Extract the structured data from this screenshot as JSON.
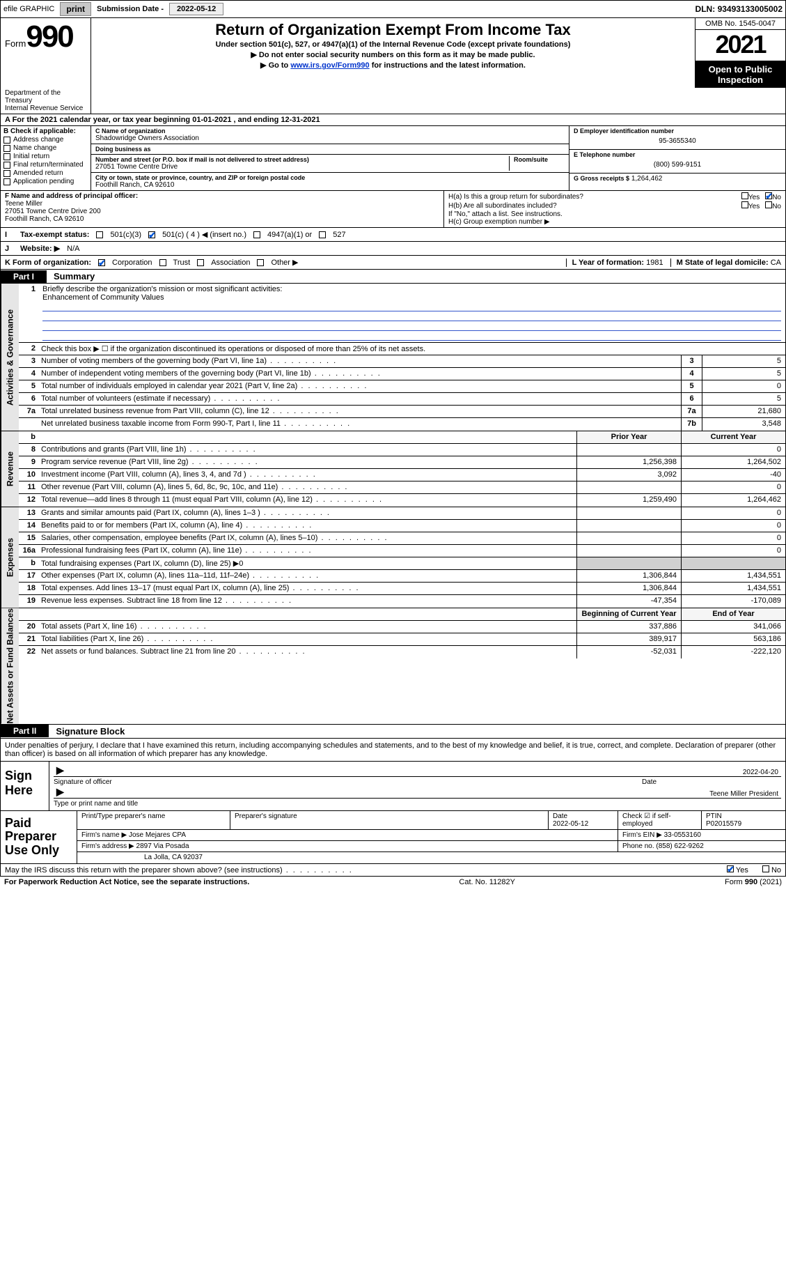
{
  "colors": {
    "link": "#0033cc",
    "check": "#0056d6",
    "rule": "#3355cc",
    "shade": "#d0d0d0",
    "vtab_bg": "#e6e6e6"
  },
  "topbar": {
    "efile_label": "efile GRAPHIC",
    "print_btn": "print",
    "subdate_label": "Submission Date -",
    "subdate_val": "2022-05-12",
    "dln_label": "DLN:",
    "dln_val": "93493133005002"
  },
  "header": {
    "form_word": "Form",
    "form_num": "990",
    "dept": "Department of the Treasury",
    "irs": "Internal Revenue Service",
    "title": "Return of Organization Exempt From Income Tax",
    "subtitle": "Under section 501(c), 527, or 4947(a)(1) of the Internal Revenue Code (except private foundations)",
    "line1": "▶ Do not enter social security numbers on this form as it may be made public.",
    "line2_pre": "▶ Go to ",
    "line2_link": "www.irs.gov/Form990",
    "line2_post": " for instructions and the latest information.",
    "omb": "OMB No. 1545-0047",
    "year": "2021",
    "open": "Open to Public Inspection"
  },
  "line_a": {
    "prefix": "A For the 2021 calendar year, or tax year beginning ",
    "begin": "01-01-2021",
    "mid": " , and ending ",
    "end": "12-31-2021"
  },
  "section_b": {
    "title": "B Check if applicable:",
    "opts": [
      "Address change",
      "Name change",
      "Initial return",
      "Final return/terminated",
      "Amended return",
      "Application pending"
    ]
  },
  "section_c": {
    "name_lbl": "C Name of organization",
    "name": "Shadowridge Owners Association",
    "dba_lbl": "Doing business as",
    "dba": "",
    "street_lbl": "Number and street (or P.O. box if mail is not delivered to street address)",
    "room_lbl": "Room/suite",
    "street": "27051 Towne Centre Drive",
    "city_lbl": "City or town, state or province, country, and ZIP or foreign postal code",
    "city": "Foothill Ranch, CA  92610"
  },
  "section_d": {
    "ein_lbl": "D Employer identification number",
    "ein": "95-3655340",
    "phone_lbl": "E Telephone number",
    "phone": "(800) 599-9151",
    "gross_lbl": "G Gross receipts $",
    "gross": "1,264,462"
  },
  "section_f": {
    "lbl": "F Name and address of principal officer:",
    "name": "Teene Miller",
    "addr1": "27051 Towne Centre Drive 200",
    "addr2": "Foothill Ranch, CA  92610"
  },
  "section_h": {
    "ha": "H(a) Is this a group return for subordinates?",
    "ha_yes": "Yes",
    "ha_no": "No",
    "ha_ans": "No",
    "hb": "H(b) Are all subordinates included?",
    "hb_yes": "Yes",
    "hb_no": "No",
    "hb_note": "If \"No,\" attach a list. See instructions.",
    "hc": "H(c) Group exemption number ▶"
  },
  "line_i": {
    "lbl": "Tax-exempt status:",
    "o1": "501(c)(3)",
    "o2": "501(c) ( 4 ) ◀ (insert no.)",
    "o3": "4947(a)(1) or",
    "o4": "527",
    "checked": "o2"
  },
  "line_j": {
    "lbl": "Website: ▶",
    "val": "N/A"
  },
  "line_k": {
    "lbl": "K Form of organization:",
    "opts": [
      "Corporation",
      "Trust",
      "Association",
      "Other ▶"
    ],
    "checked": "Corporation"
  },
  "line_l": {
    "lbl": "L Year of formation:",
    "val": "1981"
  },
  "line_m": {
    "lbl": "M State of legal domicile:",
    "val": "CA"
  },
  "part1": {
    "tab": "Part I",
    "title": "Summary"
  },
  "summary": {
    "groups": [
      {
        "label": "Activities & Governance",
        "rows": [
          {
            "n": "1",
            "text": "Briefly describe the organization's mission or most significant activities:",
            "extra": "Enhancement of Community Values",
            "type": "mission"
          },
          {
            "n": "2",
            "text": "Check this box ▶ ☐ if the organization discontinued its operations or disposed of more than 25% of its net assets.",
            "type": "plain"
          },
          {
            "n": "3",
            "text": "Number of voting members of the governing body (Part VI, line 1a)",
            "box": "3",
            "val": "5"
          },
          {
            "n": "4",
            "text": "Number of independent voting members of the governing body (Part VI, line 1b)",
            "box": "4",
            "val": "5"
          },
          {
            "n": "5",
            "text": "Total number of individuals employed in calendar year 2021 (Part V, line 2a)",
            "box": "5",
            "val": "0"
          },
          {
            "n": "6",
            "text": "Total number of volunteers (estimate if necessary)",
            "box": "6",
            "val": "5"
          },
          {
            "n": "7a",
            "text": "Total unrelated business revenue from Part VIII, column (C), line 12",
            "box": "7a",
            "val": "21,680"
          },
          {
            "n": "",
            "text": "Net unrelated business taxable income from Form 990-T, Part I, line 11",
            "box": "7b",
            "val": "3,548"
          }
        ]
      },
      {
        "label": "Revenue",
        "header": {
          "b": "b",
          "prior": "Prior Year",
          "current": "Current Year"
        },
        "rows": [
          {
            "n": "8",
            "text": "Contributions and grants (Part VIII, line 1h)",
            "prior": "",
            "current": "0"
          },
          {
            "n": "9",
            "text": "Program service revenue (Part VIII, line 2g)",
            "prior": "1,256,398",
            "current": "1,264,502"
          },
          {
            "n": "10",
            "text": "Investment income (Part VIII, column (A), lines 3, 4, and 7d )",
            "prior": "3,092",
            "current": "-40"
          },
          {
            "n": "11",
            "text": "Other revenue (Part VIII, column (A), lines 5, 6d, 8c, 9c, 10c, and 11e)",
            "prior": "",
            "current": "0"
          },
          {
            "n": "12",
            "text": "Total revenue—add lines 8 through 11 (must equal Part VIII, column (A), line 12)",
            "prior": "1,259,490",
            "current": "1,264,462"
          }
        ]
      },
      {
        "label": "Expenses",
        "rows": [
          {
            "n": "13",
            "text": "Grants and similar amounts paid (Part IX, column (A), lines 1–3 )",
            "prior": "",
            "current": "0"
          },
          {
            "n": "14",
            "text": "Benefits paid to or for members (Part IX, column (A), line 4)",
            "prior": "",
            "current": "0"
          },
          {
            "n": "15",
            "text": "Salaries, other compensation, employee benefits (Part IX, column (A), lines 5–10)",
            "prior": "",
            "current": "0"
          },
          {
            "n": "16a",
            "text": "Professional fundraising fees (Part IX, column (A), line 11e)",
            "prior": "",
            "current": "0"
          },
          {
            "n": "b",
            "text": "Total fundraising expenses (Part IX, column (D), line 25) ▶0",
            "type": "noboxes"
          },
          {
            "n": "17",
            "text": "Other expenses (Part IX, column (A), lines 11a–11d, 11f–24e)",
            "prior": "1,306,844",
            "current": "1,434,551"
          },
          {
            "n": "18",
            "text": "Total expenses. Add lines 13–17 (must equal Part IX, column (A), line 25)",
            "prior": "1,306,844",
            "current": "1,434,551"
          },
          {
            "n": "19",
            "text": "Revenue less expenses. Subtract line 18 from line 12",
            "prior": "-47,354",
            "current": "-170,089"
          }
        ]
      },
      {
        "label": "Net Assets or Fund Balances",
        "header": {
          "prior": "Beginning of Current Year",
          "current": "End of Year"
        },
        "rows": [
          {
            "n": "20",
            "text": "Total assets (Part X, line 16)",
            "prior": "337,886",
            "current": "341,066"
          },
          {
            "n": "21",
            "text": "Total liabilities (Part X, line 26)",
            "prior": "389,917",
            "current": "563,186"
          },
          {
            "n": "22",
            "text": "Net assets or fund balances. Subtract line 21 from line 20",
            "prior": "-52,031",
            "current": "-222,120"
          }
        ]
      }
    ]
  },
  "part2": {
    "tab": "Part II",
    "title": "Signature Block"
  },
  "perjury": "Under penalties of perjury, I declare that I have examined this return, including accompanying schedules and statements, and to the best of my knowledge and belief, it is true, correct, and complete. Declaration of preparer (other than officer) is based on all information of which preparer has any knowledge.",
  "sign": {
    "left": "Sign Here",
    "sig_lbl": "Signature of officer",
    "date_lbl": "Date",
    "date": "2022-04-20",
    "name": "Teene Miller  President",
    "name_lbl": "Type or print name and title"
  },
  "paid": {
    "left": "Paid Preparer Use Only",
    "hdr": [
      "Print/Type preparer's name",
      "Preparer's signature",
      "Date",
      "",
      "PTIN"
    ],
    "row1_date": "2022-05-12",
    "row1_chk_lbl": "Check ☑ if self-employed",
    "ptin": "P02015579",
    "firm_name_lbl": "Firm's name ▶",
    "firm_name": "Jose Mejares CPA",
    "firm_ein_lbl": "Firm's EIN ▶",
    "firm_ein": "33-0553160",
    "firm_addr_lbl": "Firm's address ▶",
    "firm_addr1": "2897 Via Posada",
    "firm_addr2": "La Jolla, CA  92037",
    "firm_phone_lbl": "Phone no.",
    "firm_phone": "(858) 622-9262"
  },
  "discuss": {
    "text": "May the IRS discuss this return with the preparer shown above? (see instructions)",
    "yes": "Yes",
    "no": "No",
    "ans": "Yes"
  },
  "footer": {
    "pra": "For Paperwork Reduction Act Notice, see the separate instructions.",
    "cat": "Cat. No. 11282Y",
    "form": "Form 990 (2021)"
  }
}
